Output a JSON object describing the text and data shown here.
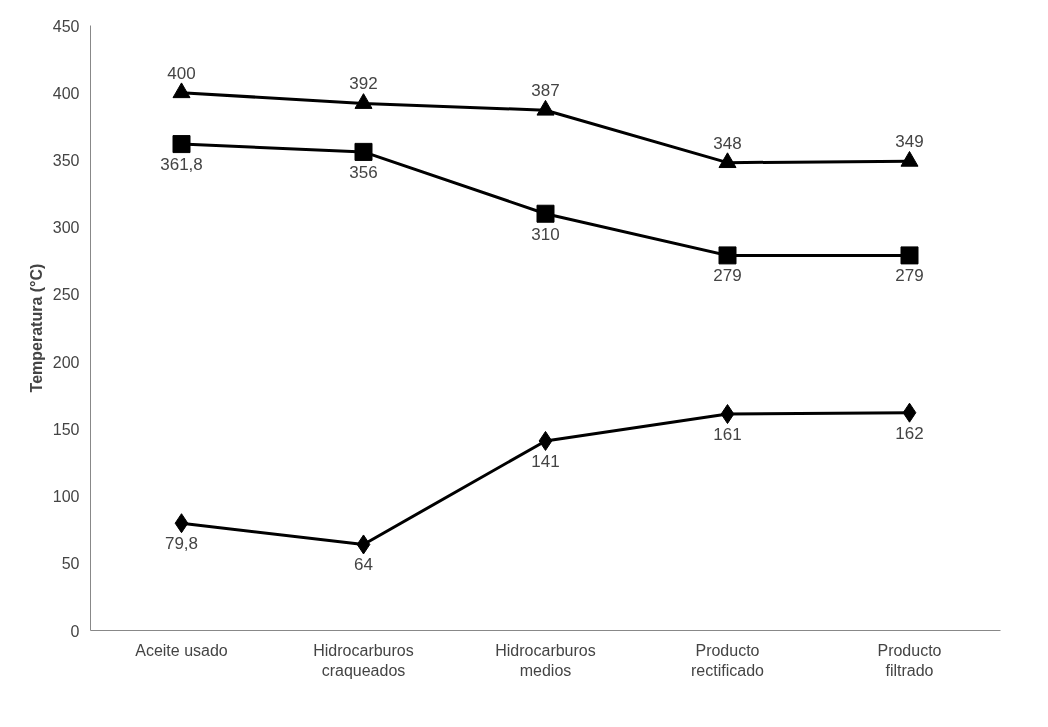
{
  "chart_data": {
    "type": "line",
    "ylabel": "Temperatura (°C)",
    "categories": [
      "Aceite usado",
      "Hidrocarburos craqueados",
      "Hidrocarburos medios",
      "Producto rectificado",
      "Producto filtrado"
    ],
    "series": [
      {
        "color": "#000000",
        "marker": "triangle",
        "values": [
          400,
          392,
          387,
          348,
          349
        ],
        "value_labels": [
          "400",
          "392",
          "387",
          "348",
          "349"
        ]
      },
      {
        "color": "#000000",
        "marker": "square",
        "values": [
          361.8,
          356,
          310,
          279,
          279
        ],
        "value_labels": [
          "361,8",
          "356",
          "310",
          "279",
          "279"
        ]
      },
      {
        "color": "#000000",
        "marker": "diamond",
        "values": [
          79.8,
          64,
          141,
          161,
          162
        ],
        "value_labels": [
          "79,8",
          "64",
          "141",
          "161",
          "162"
        ]
      }
    ],
    "ylim": [
      0,
      450
    ],
    "yticks": [
      0,
      50,
      100,
      150,
      200,
      250,
      300,
      350,
      400,
      450
    ],
    "grid": false,
    "line_style": "solid"
  }
}
